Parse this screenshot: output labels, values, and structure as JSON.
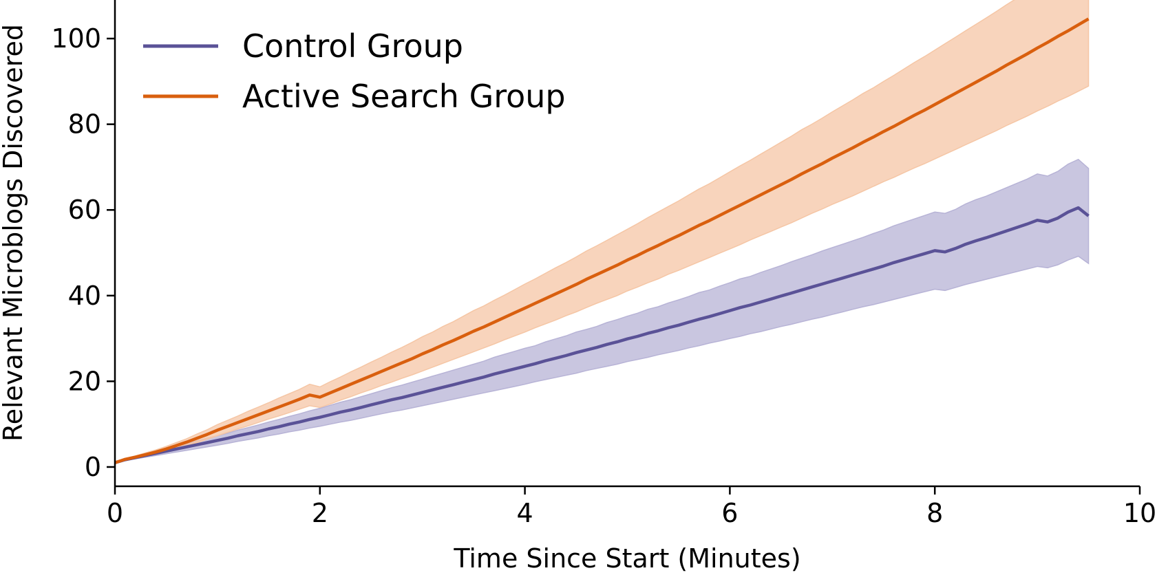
{
  "chart_data": {
    "type": "line",
    "title": "",
    "xlabel": "Time Since Start (Minutes)",
    "ylabel": "Relevant Microblogs Discovered",
    "xlim": [
      0,
      10
    ],
    "ylim": [
      -4.5,
      109
    ],
    "xticks": [
      0,
      2,
      4,
      6,
      8,
      10
    ],
    "yticks": [
      0,
      20,
      40,
      60,
      80,
      100
    ],
    "xtick_labels": [
      "0",
      "2",
      "4",
      "6",
      "8",
      "10"
    ],
    "ytick_labels": [
      "0",
      "20",
      "40",
      "60",
      "80",
      "100"
    ],
    "grid": false,
    "legend_position": "top-left",
    "x": [
      0,
      0.1,
      0.2,
      0.3,
      0.4,
      0.5,
      0.6,
      0.7,
      0.8,
      0.9,
      1.0,
      1.1,
      1.2,
      1.3,
      1.4,
      1.5,
      1.6,
      1.7,
      1.8,
      1.9,
      2.0,
      2.1,
      2.2,
      2.3,
      2.4,
      2.5,
      2.6,
      2.7,
      2.8,
      2.9,
      3.0,
      3.1,
      3.2,
      3.3,
      3.4,
      3.5,
      3.6,
      3.7,
      3.8,
      3.9,
      4.0,
      4.1,
      4.2,
      4.3,
      4.4,
      4.5,
      4.6,
      4.7,
      4.8,
      4.9,
      5.0,
      5.1,
      5.2,
      5.3,
      5.4,
      5.5,
      5.6,
      5.7,
      5.8,
      5.9,
      6.0,
      6.1,
      6.2,
      6.3,
      6.4,
      6.5,
      6.6,
      6.7,
      6.8,
      6.9,
      7.0,
      7.1,
      7.2,
      7.3,
      7.4,
      7.5,
      7.6,
      7.7,
      7.8,
      7.9,
      8.0,
      8.1,
      8.2,
      8.3,
      8.4,
      8.5,
      8.6,
      8.7,
      8.8,
      8.9,
      9.0,
      9.1,
      9.2,
      9.3,
      9.4,
      9.5
    ],
    "series": [
      {
        "name": "Control Group",
        "color": "#5a5297",
        "band_color": "#b7b3d6",
        "values": [
          1.0,
          1.7,
          2.2,
          2.7,
          3.2,
          3.7,
          4.2,
          4.7,
          5.2,
          5.7,
          6.2,
          6.7,
          7.3,
          7.8,
          8.3,
          8.9,
          9.4,
          10.0,
          10.5,
          11.1,
          11.6,
          12.2,
          12.8,
          13.3,
          13.9,
          14.5,
          15.1,
          15.7,
          16.2,
          16.8,
          17.4,
          18.0,
          18.6,
          19.2,
          19.8,
          20.4,
          21.0,
          21.7,
          22.3,
          22.9,
          23.5,
          24.1,
          24.8,
          25.4,
          26.0,
          26.7,
          27.3,
          27.9,
          28.6,
          29.2,
          29.9,
          30.5,
          31.2,
          31.8,
          32.5,
          33.1,
          33.8,
          34.5,
          35.1,
          35.8,
          36.5,
          37.2,
          37.8,
          38.5,
          39.2,
          39.9,
          40.6,
          41.3,
          42.0,
          42.7,
          43.4,
          44.1,
          44.8,
          45.5,
          46.2,
          46.9,
          47.7,
          48.4,
          49.1,
          49.8,
          50.5,
          50.2,
          51.0,
          52.0,
          52.8,
          53.5,
          54.3,
          55.1,
          55.9,
          56.7,
          57.6,
          57.2,
          58.1,
          59.5,
          60.5,
          58.6
        ],
        "lower": [
          1.0,
          1.5,
          1.9,
          2.3,
          2.7,
          3.1,
          3.5,
          3.9,
          4.3,
          4.7,
          5.1,
          5.5,
          6.0,
          6.4,
          6.8,
          7.3,
          7.7,
          8.2,
          8.6,
          9.1,
          9.5,
          10.0,
          10.5,
          10.9,
          11.4,
          11.9,
          12.4,
          12.9,
          13.3,
          13.8,
          14.3,
          14.8,
          15.3,
          15.8,
          16.3,
          16.8,
          17.3,
          17.8,
          18.3,
          18.8,
          19.3,
          19.9,
          20.4,
          20.9,
          21.4,
          21.9,
          22.5,
          23.0,
          23.5,
          24.0,
          24.6,
          25.1,
          25.6,
          26.2,
          26.7,
          27.2,
          27.8,
          28.3,
          28.9,
          29.4,
          30.0,
          30.5,
          31.1,
          31.6,
          32.2,
          32.8,
          33.3,
          33.9,
          34.5,
          35.0,
          35.6,
          36.2,
          36.8,
          37.4,
          37.9,
          38.5,
          39.1,
          39.7,
          40.3,
          40.9,
          41.5,
          41.2,
          41.9,
          42.6,
          43.2,
          43.8,
          44.4,
          45.0,
          45.6,
          46.2,
          46.8,
          46.5,
          47.2,
          48.3,
          49.2,
          47.5
        ],
        "upper": [
          1.0,
          1.9,
          2.5,
          3.1,
          3.7,
          4.3,
          4.9,
          5.5,
          6.1,
          6.7,
          7.3,
          7.9,
          8.6,
          9.2,
          9.8,
          10.5,
          11.1,
          11.8,
          12.4,
          13.1,
          13.7,
          14.4,
          15.1,
          15.7,
          16.4,
          17.1,
          17.8,
          18.5,
          19.1,
          19.8,
          20.5,
          21.2,
          21.9,
          22.6,
          23.3,
          24.0,
          24.7,
          25.6,
          26.3,
          27.0,
          27.7,
          28.3,
          29.2,
          29.9,
          30.6,
          31.5,
          32.1,
          32.8,
          33.7,
          34.4,
          35.2,
          35.9,
          36.8,
          37.4,
          38.3,
          39.0,
          39.8,
          40.7,
          41.3,
          42.2,
          43.0,
          43.9,
          44.5,
          45.4,
          46.2,
          47.0,
          47.9,
          48.7,
          49.5,
          50.4,
          51.2,
          52.0,
          52.8,
          53.6,
          54.5,
          55.3,
          56.3,
          57.1,
          57.9,
          58.7,
          59.5,
          59.2,
          60.1,
          61.4,
          62.4,
          63.2,
          64.2,
          65.2,
          66.2,
          67.2,
          68.4,
          67.9,
          69.0,
          70.7,
          71.8,
          69.7
        ]
      },
      {
        "name": "Active Search Group",
        "color": "#d95f0e",
        "band_color": "#f5c6a5",
        "values": [
          1.0,
          1.8,
          2.3,
          2.9,
          3.5,
          4.2,
          5.0,
          5.8,
          6.7,
          7.6,
          8.6,
          9.5,
          10.4,
          11.3,
          12.2,
          13.1,
          14.0,
          14.9,
          15.8,
          16.8,
          16.3,
          17.3,
          18.3,
          19.3,
          20.3,
          21.3,
          22.3,
          23.3,
          24.3,
          25.3,
          26.4,
          27.4,
          28.5,
          29.5,
          30.6,
          31.7,
          32.7,
          33.8,
          34.9,
          36.0,
          37.1,
          38.2,
          39.3,
          40.4,
          41.5,
          42.6,
          43.8,
          44.9,
          46.0,
          47.1,
          48.3,
          49.4,
          50.6,
          51.7,
          52.9,
          54.0,
          55.2,
          56.4,
          57.5,
          58.7,
          59.9,
          61.1,
          62.3,
          63.5,
          64.7,
          65.9,
          67.1,
          68.4,
          69.6,
          70.8,
          72.1,
          73.3,
          74.5,
          75.8,
          77.0,
          78.3,
          79.5,
          80.8,
          82.1,
          83.3,
          84.6,
          85.9,
          87.2,
          88.5,
          89.8,
          91.1,
          92.4,
          93.8,
          95.1,
          96.4,
          97.8,
          99.1,
          100.5,
          101.8,
          103.2,
          104.6
        ],
        "lower": [
          1.0,
          1.6,
          2.0,
          2.5,
          3.0,
          3.6,
          4.3,
          5.0,
          5.7,
          6.5,
          7.3,
          8.1,
          8.9,
          9.6,
          10.4,
          11.2,
          11.9,
          12.7,
          13.5,
          14.3,
          13.9,
          14.7,
          15.6,
          16.4,
          17.3,
          18.1,
          19.0,
          19.8,
          20.7,
          21.5,
          22.4,
          23.3,
          24.2,
          25.1,
          26.0,
          26.9,
          27.8,
          28.7,
          29.7,
          30.6,
          31.5,
          32.5,
          33.4,
          34.3,
          35.3,
          36.2,
          37.2,
          38.2,
          39.1,
          40.0,
          41.1,
          42.0,
          43.0,
          43.9,
          45.0,
          45.9,
          46.9,
          47.9,
          48.9,
          49.9,
          50.9,
          51.9,
          53.0,
          54.0,
          55.0,
          56.0,
          57.0,
          58.1,
          59.2,
          60.2,
          61.3,
          62.3,
          63.3,
          64.4,
          65.5,
          66.6,
          67.6,
          68.7,
          69.8,
          70.8,
          71.9,
          73.0,
          74.1,
          75.2,
          76.3,
          77.4,
          78.5,
          79.7,
          80.8,
          81.9,
          83.1,
          84.2,
          85.4,
          86.5,
          87.7,
          88.9
        ],
        "upper": [
          1.0,
          2.0,
          2.6,
          3.3,
          4.0,
          4.8,
          5.7,
          6.6,
          7.7,
          8.7,
          9.9,
          10.9,
          11.9,
          13.0,
          14.0,
          15.0,
          16.1,
          17.1,
          18.1,
          19.3,
          18.7,
          19.9,
          21.0,
          22.2,
          23.3,
          24.5,
          25.6,
          26.8,
          27.9,
          29.1,
          30.4,
          31.5,
          32.8,
          33.9,
          35.2,
          36.5,
          37.6,
          38.9,
          40.1,
          41.4,
          42.7,
          43.9,
          45.2,
          46.5,
          47.7,
          49.0,
          50.4,
          51.6,
          52.9,
          54.2,
          55.5,
          56.8,
          58.2,
          59.5,
          60.8,
          62.1,
          63.5,
          64.9,
          66.1,
          67.5,
          68.9,
          70.3,
          71.6,
          73.0,
          74.4,
          75.8,
          77.2,
          78.7,
          80.0,
          81.4,
          82.9,
          84.3,
          85.7,
          87.2,
          88.5,
          90.0,
          91.4,
          92.9,
          94.4,
          95.8,
          97.3,
          98.8,
          100.3,
          101.8,
          103.3,
          104.8,
          106.3,
          107.9,
          109.4,
          110.9,
          112.5,
          114.0,
          115.6,
          117.1,
          118.7,
          120.3
        ]
      }
    ]
  }
}
